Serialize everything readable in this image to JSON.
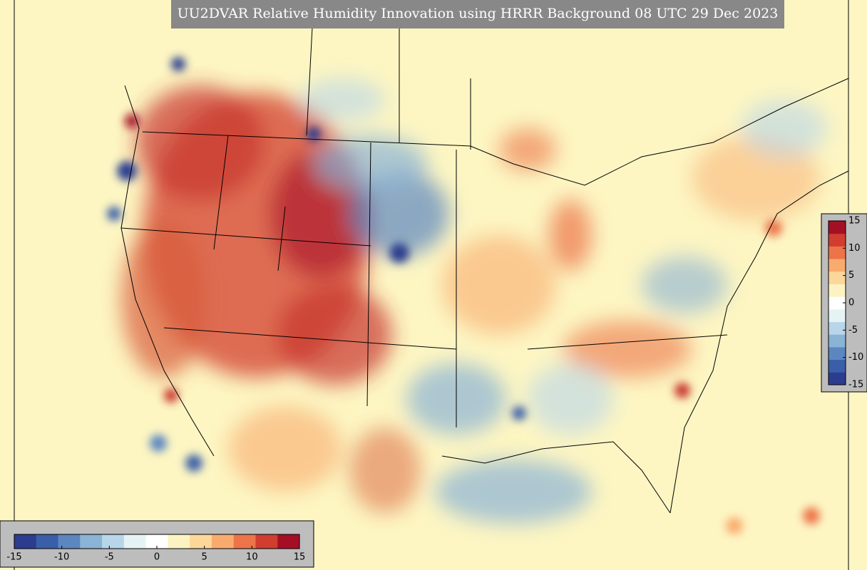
{
  "title": "UU2DVAR Relative Humidity Innovation using HRRR Background 08 UTC 29 Dec 2023",
  "colorbars": [
    {
      "orientation": "horizontal",
      "lim": [
        -15,
        15
      ],
      "ticks": [
        -15,
        -10,
        -5,
        0,
        5,
        10,
        15
      ]
    },
    {
      "orientation": "vertical",
      "lim": [
        -15,
        15
      ],
      "ticks": [
        -15,
        -10,
        -5,
        0,
        5,
        10,
        15
      ]
    }
  ],
  "colors": [
    "#2c3d8f",
    "#3a5ea8",
    "#5b86c0",
    "#8ab3d6",
    "#b8d6ea",
    "#e6f3f5",
    "#ffffff",
    "#fdf3c2",
    "#fdd79a",
    "#f9ab6e",
    "#ec7448",
    "#d13d2f",
    "#a50f26"
  ]
}
